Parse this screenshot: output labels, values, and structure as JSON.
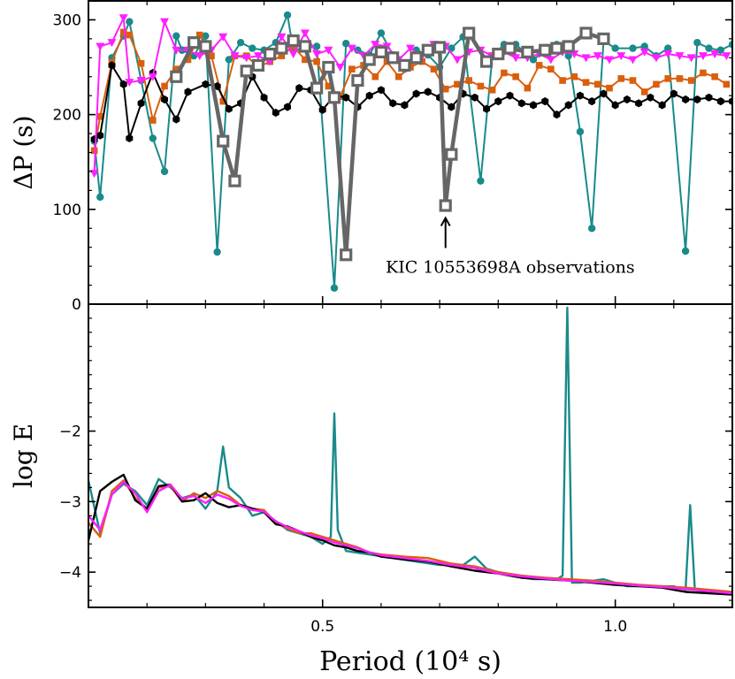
{
  "chart_data": [
    {
      "type": "line",
      "panel": "top",
      "ylabel": "ΔP (s)",
      "ylim": [
        0,
        320
      ],
      "yticks": [
        0,
        100,
        200,
        300
      ],
      "xlim": [
        0.1,
        1.2
      ],
      "annotation": "KIC 10553698A observations",
      "annotation_target": [
        0.71,
        104
      ],
      "series": [
        {
          "color": "#1a8a8a",
          "marker": "circle",
          "x": [
            0.11,
            0.12,
            0.14,
            0.16,
            0.17,
            0.19,
            0.21,
            0.23,
            0.25,
            0.26,
            0.28,
            0.3,
            0.32,
            0.34,
            0.36,
            0.38,
            0.4,
            0.42,
            0.44,
            0.45,
            0.47,
            0.49,
            0.52,
            0.54,
            0.56,
            0.58,
            0.6,
            0.62,
            0.64,
            0.66,
            0.68,
            0.7,
            0.72,
            0.74,
            0.77,
            0.79,
            0.81,
            0.83,
            0.86,
            0.88,
            0.9,
            0.92,
            0.94,
            0.96,
            0.98,
            1.0,
            1.03,
            1.05,
            1.07,
            1.09,
            1.12,
            1.14,
            1.16,
            1.18,
            1.2
          ],
          "values": [
            172,
            113,
            260,
            283,
            298,
            236,
            175,
            140,
            283,
            268,
            262,
            283,
            55,
            258,
            276,
            270,
            268,
            276,
            305,
            268,
            270,
            272,
            17,
            275,
            268,
            263,
            286,
            263,
            248,
            268,
            263,
            250,
            270,
            282,
            130,
            262,
            274,
            274,
            258,
            268,
            274,
            262,
            182,
            80,
            278,
            270,
            270,
            272,
            262,
            270,
            56,
            276,
            270,
            268,
            274
          ]
        },
        {
          "color": "#d95f0e",
          "marker": "square",
          "x": [
            0.11,
            0.12,
            0.14,
            0.16,
            0.17,
            0.19,
            0.21,
            0.23,
            0.25,
            0.27,
            0.29,
            0.31,
            0.33,
            0.35,
            0.37,
            0.39,
            0.41,
            0.43,
            0.45,
            0.47,
            0.49,
            0.51,
            0.53,
            0.55,
            0.57,
            0.59,
            0.61,
            0.63,
            0.65,
            0.67,
            0.69,
            0.71,
            0.73,
            0.75,
            0.77,
            0.79,
            0.81,
            0.83,
            0.85,
            0.87,
            0.89,
            0.91,
            0.93,
            0.95,
            0.97,
            0.99,
            1.01,
            1.03,
            1.05,
            1.07,
            1.09,
            1.11,
            1.13,
            1.15,
            1.17,
            1.19
          ],
          "values": [
            162,
            198,
            255,
            287,
            284,
            254,
            194,
            230,
            248,
            258,
            284,
            262,
            214,
            262,
            262,
            250,
            256,
            262,
            272,
            258,
            256,
            230,
            219,
            248,
            252,
            240,
            256,
            240,
            250,
            256,
            248,
            227,
            232,
            236,
            230,
            226,
            244,
            240,
            228,
            252,
            248,
            236,
            240,
            234,
            232,
            228,
            238,
            236,
            224,
            232,
            238,
            238,
            236,
            244,
            240,
            232
          ]
        },
        {
          "color": "#000000",
          "marker": "hexagon",
          "x": [
            0.11,
            0.12,
            0.14,
            0.16,
            0.17,
            0.19,
            0.21,
            0.23,
            0.25,
            0.27,
            0.3,
            0.32,
            0.34,
            0.36,
            0.38,
            0.4,
            0.42,
            0.44,
            0.46,
            0.48,
            0.5,
            0.52,
            0.54,
            0.56,
            0.58,
            0.6,
            0.62,
            0.64,
            0.66,
            0.68,
            0.7,
            0.72,
            0.74,
            0.76,
            0.78,
            0.8,
            0.82,
            0.84,
            0.86,
            0.88,
            0.9,
            0.92,
            0.94,
            0.96,
            0.98,
            1.0,
            1.02,
            1.04,
            1.06,
            1.08,
            1.1,
            1.12,
            1.14,
            1.16,
            1.18,
            1.2
          ],
          "values": [
            174,
            178,
            252,
            232,
            175,
            212,
            244,
            216,
            195,
            224,
            232,
            230,
            206,
            212,
            240,
            218,
            202,
            208,
            228,
            226,
            205,
            220,
            218,
            208,
            220,
            226,
            212,
            210,
            222,
            224,
            218,
            208,
            222,
            218,
            206,
            214,
            220,
            212,
            210,
            214,
            200,
            210,
            220,
            214,
            222,
            210,
            216,
            212,
            218,
            210,
            222,
            216,
            216,
            218,
            214,
            214
          ]
        },
        {
          "color": "#ff1fff",
          "marker": "triangle-down",
          "x": [
            0.11,
            0.12,
            0.14,
            0.16,
            0.17,
            0.19,
            0.21,
            0.23,
            0.25,
            0.27,
            0.29,
            0.31,
            0.33,
            0.35,
            0.37,
            0.39,
            0.41,
            0.43,
            0.45,
            0.47,
            0.49,
            0.51,
            0.53,
            0.55,
            0.57,
            0.59,
            0.61,
            0.63,
            0.65,
            0.67,
            0.69,
            0.71,
            0.73,
            0.75,
            0.77,
            0.79,
            0.81,
            0.83,
            0.85,
            0.87,
            0.89,
            0.91,
            0.93,
            0.95,
            0.97,
            0.99,
            1.01,
            1.03,
            1.05,
            1.07,
            1.09,
            1.11,
            1.13,
            1.15,
            1.17,
            1.19
          ],
          "values": [
            138,
            272,
            276,
            302,
            234,
            236,
            240,
            298,
            268,
            268,
            262,
            268,
            282,
            262,
            260,
            262,
            256,
            282,
            264,
            286,
            264,
            268,
            250,
            270,
            262,
            274,
            272,
            258,
            270,
            262,
            274,
            272,
            258,
            266,
            268,
            262,
            266,
            260,
            260,
            264,
            258,
            266,
            264,
            260,
            262,
            258,
            262,
            258,
            266,
            260,
            264,
            262,
            260,
            262,
            264,
            262
          ]
        },
        {
          "color": "#666666",
          "marker": "square-open",
          "x": [
            0.25,
            0.28,
            0.3,
            0.33,
            0.35,
            0.37,
            0.39,
            0.41,
            0.43,
            0.45,
            0.47,
            0.49,
            0.51,
            0.52,
            0.54,
            0.56,
            0.58,
            0.6,
            0.62,
            0.64,
            0.66,
            0.68,
            0.7,
            0.71,
            0.72,
            0.75,
            0.78,
            0.8,
            0.82,
            0.85,
            0.88,
            0.9,
            0.92,
            0.95,
            0.98
          ],
          "values": [
            240,
            276,
            272,
            172,
            130,
            246,
            252,
            264,
            270,
            278,
            272,
            228,
            250,
            218,
            52,
            236,
            258,
            266,
            260,
            252,
            260,
            268,
            271,
            104,
            158,
            286,
            256,
            264,
            270,
            266,
            268,
            270,
            272,
            286,
            280
          ]
        }
      ]
    },
    {
      "type": "line",
      "panel": "bottom",
      "ylabel": "log E",
      "xlabel": "Period (10⁴ s)",
      "ylim": [
        -4.5,
        -0.2
      ],
      "yticks": [
        -4,
        -3,
        -2
      ],
      "xlim": [
        0.1,
        1.2
      ],
      "xticks": [
        0.5,
        1.0
      ],
      "xtick_labels": [
        "0.5",
        "1.0"
      ],
      "series": [
        {
          "color": "#1a8a8a",
          "x": [
            0.1,
            0.12,
            0.14,
            0.16,
            0.18,
            0.2,
            0.22,
            0.24,
            0.26,
            0.28,
            0.3,
            0.32,
            0.33,
            0.34,
            0.36,
            0.38,
            0.4,
            0.44,
            0.48,
            0.5,
            0.514,
            0.52,
            0.526,
            0.54,
            0.58,
            0.62,
            0.66,
            0.7,
            0.74,
            0.76,
            0.78,
            0.82,
            0.86,
            0.9,
            0.91,
            0.918,
            0.926,
            0.94,
            0.98,
            1.02,
            1.06,
            1.1,
            1.12,
            1.128,
            1.136,
            1.16,
            1.2
          ],
          "values": [
            -2.7,
            -3.45,
            -2.9,
            -2.75,
            -2.85,
            -3.05,
            -2.68,
            -2.8,
            -2.95,
            -2.9,
            -3.1,
            -2.85,
            -2.22,
            -2.8,
            -2.95,
            -3.2,
            -3.15,
            -3.4,
            -3.5,
            -3.6,
            -3.5,
            -1.75,
            -3.4,
            -3.7,
            -3.75,
            -3.8,
            -3.85,
            -3.9,
            -3.9,
            -3.78,
            -3.95,
            -4.05,
            -4.1,
            -4.1,
            -4.05,
            -0.25,
            -4.15,
            -4.15,
            -4.1,
            -4.2,
            -4.2,
            -4.2,
            -4.25,
            -3.05,
            -4.25,
            -4.28,
            -4.3
          ]
        },
        {
          "color": "#d95f0e",
          "x": [
            0.1,
            0.12,
            0.14,
            0.16,
            0.18,
            0.2,
            0.22,
            0.24,
            0.26,
            0.28,
            0.3,
            0.32,
            0.34,
            0.36,
            0.38,
            0.4,
            0.42,
            0.44,
            0.46,
            0.48,
            0.5,
            0.52,
            0.54,
            0.56,
            0.58,
            0.6,
            0.64,
            0.68,
            0.72,
            0.76,
            0.8,
            0.84,
            0.88,
            0.92,
            0.96,
            1.0,
            1.04,
            1.08,
            1.12,
            1.16,
            1.2
          ],
          "values": [
            -3.3,
            -3.5,
            -2.85,
            -2.7,
            -2.95,
            -3.1,
            -2.8,
            -2.78,
            -3.0,
            -2.88,
            -2.95,
            -2.85,
            -2.92,
            -3.05,
            -3.1,
            -3.12,
            -3.3,
            -3.38,
            -3.45,
            -3.45,
            -3.5,
            -3.55,
            -3.6,
            -3.65,
            -3.72,
            -3.75,
            -3.78,
            -3.8,
            -3.88,
            -3.92,
            -4.0,
            -4.05,
            -4.08,
            -4.1,
            -4.12,
            -4.15,
            -4.18,
            -4.2,
            -4.22,
            -4.25,
            -4.28
          ]
        },
        {
          "color": "#000000",
          "x": [
            0.1,
            0.12,
            0.14,
            0.16,
            0.18,
            0.2,
            0.22,
            0.24,
            0.26,
            0.28,
            0.3,
            0.32,
            0.34,
            0.36,
            0.38,
            0.4,
            0.42,
            0.44,
            0.46,
            0.48,
            0.5,
            0.52,
            0.54,
            0.56,
            0.58,
            0.6,
            0.64,
            0.68,
            0.72,
            0.76,
            0.8,
            0.84,
            0.88,
            0.92,
            0.96,
            1.0,
            1.04,
            1.08,
            1.12,
            1.16,
            1.2
          ],
          "values": [
            -3.55,
            -2.85,
            -2.72,
            -2.62,
            -2.98,
            -3.1,
            -2.78,
            -2.76,
            -3.0,
            -2.98,
            -2.88,
            -3.02,
            -3.08,
            -3.05,
            -3.1,
            -3.15,
            -3.32,
            -3.35,
            -3.42,
            -3.5,
            -3.55,
            -3.62,
            -3.65,
            -3.7,
            -3.72,
            -3.78,
            -3.82,
            -3.85,
            -3.92,
            -3.98,
            -4.02,
            -4.08,
            -4.1,
            -4.12,
            -4.15,
            -4.18,
            -4.2,
            -4.22,
            -4.28,
            -4.3,
            -4.32
          ]
        },
        {
          "color": "#ff1fff",
          "x": [
            0.1,
            0.12,
            0.14,
            0.16,
            0.18,
            0.2,
            0.22,
            0.24,
            0.26,
            0.28,
            0.3,
            0.32,
            0.34,
            0.36,
            0.38,
            0.4,
            0.42,
            0.44,
            0.46,
            0.48,
            0.5,
            0.52,
            0.54,
            0.56,
            0.58,
            0.6,
            0.64,
            0.68,
            0.72,
            0.76,
            0.8,
            0.84,
            0.88,
            0.92,
            0.96,
            1.0,
            1.04,
            1.08,
            1.12,
            1.16,
            1.2
          ],
          "values": [
            -3.2,
            -3.4,
            -2.9,
            -2.72,
            -2.88,
            -3.15,
            -2.85,
            -2.76,
            -2.96,
            -2.92,
            -3.02,
            -2.9,
            -2.96,
            -3.06,
            -3.12,
            -3.14,
            -3.28,
            -3.36,
            -3.42,
            -3.48,
            -3.52,
            -3.58,
            -3.62,
            -3.66,
            -3.72,
            -3.76,
            -3.8,
            -3.84,
            -3.9,
            -3.94,
            -4.02,
            -4.06,
            -4.09,
            -4.12,
            -4.14,
            -4.16,
            -4.19,
            -4.21,
            -4.24,
            -4.27,
            -4.3
          ]
        }
      ]
    }
  ]
}
